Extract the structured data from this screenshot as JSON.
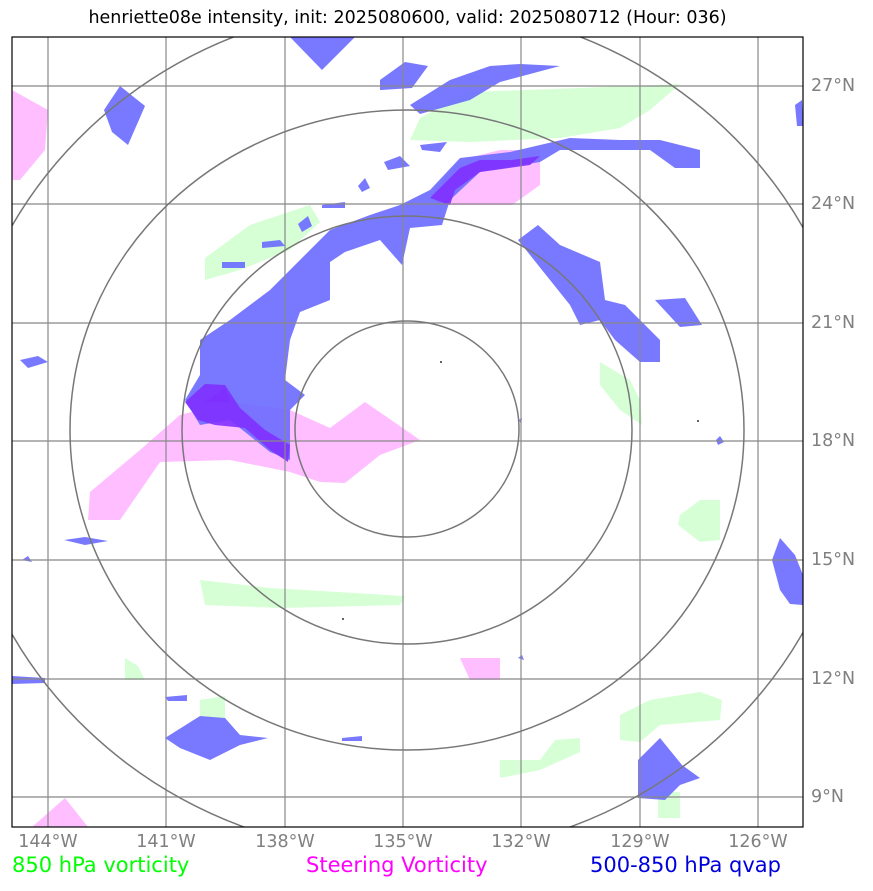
{
  "title": "henriette08e intensity, init: 2025080600, valid: 2025080712 (Hour: 036)",
  "longitude_labels": [
    "144°W",
    "141°W",
    "138°W",
    "135°W",
    "132°W",
    "129°W",
    "126°W"
  ],
  "latitude_labels": [
    "27°N",
    "24°N",
    "21°N",
    "18°N",
    "15°N",
    "12°N",
    "9°N"
  ],
  "legend": {
    "vorticity_850": {
      "label": "850 hPa vorticity",
      "color": "#00ff00"
    },
    "steering": {
      "label": "Steering Vorticity",
      "color": "#ff00ff"
    },
    "qvap": {
      "label": "500-850 hPa qvap",
      "color": "#0000dd"
    }
  },
  "map": {
    "lon_range": [
      -145.0,
      -125.0
    ],
    "lat_range": [
      8.3,
      28.3
    ],
    "storm_center": [
      -135.0,
      18.3
    ],
    "range_rings": 4,
    "fills": {
      "vorticity_850": "#d9ffd9",
      "steering": "#ffbbff",
      "qvap": "#7070ff",
      "overlap": "#8040ff"
    }
  }
}
